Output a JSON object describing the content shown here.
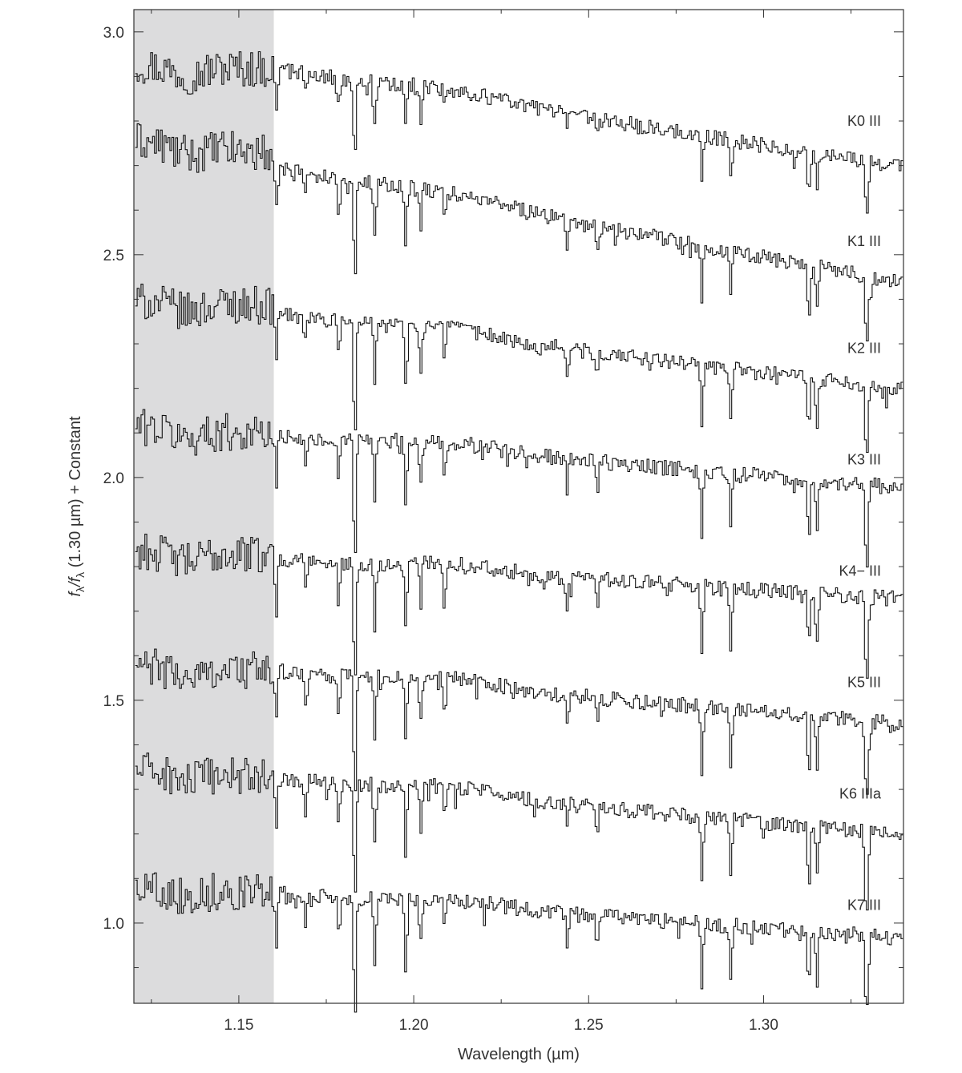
{
  "chart_data": {
    "type": "line",
    "line_style": "step",
    "xlabel": "Wavelength (µm)",
    "ylabel_parts": [
      "f",
      "λ",
      "/f",
      "λ",
      " (1.30 µm) + Constant"
    ],
    "xlim": [
      1.12,
      1.34
    ],
    "ylim": [
      0.82,
      3.05
    ],
    "x_ticks": [
      "1.15",
      "1.20",
      "1.25",
      "1.30"
    ],
    "y_ticks": [
      "1.0",
      "1.5",
      "2.0",
      "2.5",
      "3.0"
    ],
    "shaded_region": {
      "x": [
        1.12,
        1.16
      ],
      "color": "#dcdcdd"
    },
    "line_color": "#111111",
    "absorption_lines_um": [
      1.1605,
      1.1688,
      1.1783,
      1.1829,
      1.1886,
      1.1975,
      1.2017,
      1.2086,
      1.2436,
      1.2522,
      1.2821,
      1.2904,
      1.3127,
      1.315,
      1.329,
      1.3295
    ],
    "series": [
      {
        "name": "K0 III",
        "label_y": 2.8,
        "short_continuum": [
          2.93,
          2.92
        ],
        "long_continuum": [
          2.92,
          2.7
        ],
        "depth": 0.9
      },
      {
        "name": "K1 III",
        "label_y": 2.53,
        "short_continuum": [
          2.76,
          2.73
        ],
        "long_continuum": [
          2.7,
          2.44
        ],
        "depth": 1.1
      },
      {
        "name": "K2 III",
        "label_y": 2.29,
        "short_continuum": [
          2.4,
          2.39
        ],
        "long_continuum": [
          2.37,
          2.2
        ],
        "depth": 1.2
      },
      {
        "name": "K3 III",
        "label_y": 2.04,
        "short_continuum": [
          2.12,
          2.1
        ],
        "long_continuum": [
          2.1,
          1.98
        ],
        "depth": 1.3
      },
      {
        "name": "K4− III",
        "label_y": 1.79,
        "short_continuum": [
          1.84,
          1.83
        ],
        "long_continuum": [
          1.82,
          1.73
        ],
        "depth": 1.3
      },
      {
        "name": "K5 III",
        "label_y": 1.54,
        "short_continuum": [
          1.58,
          1.57
        ],
        "long_continuum": [
          1.57,
          1.45
        ],
        "depth": 1.3
      },
      {
        "name": "K6 IIIa",
        "label_y": 1.29,
        "short_continuum": [
          1.35,
          1.33
        ],
        "long_continuum": [
          1.33,
          1.2
        ],
        "depth": 1.3
      },
      {
        "name": "K7 III",
        "label_y": 1.04,
        "short_continuum": [
          1.09,
          1.07
        ],
        "long_continuum": [
          1.07,
          0.97
        ],
        "depth": 1.3
      }
    ]
  }
}
